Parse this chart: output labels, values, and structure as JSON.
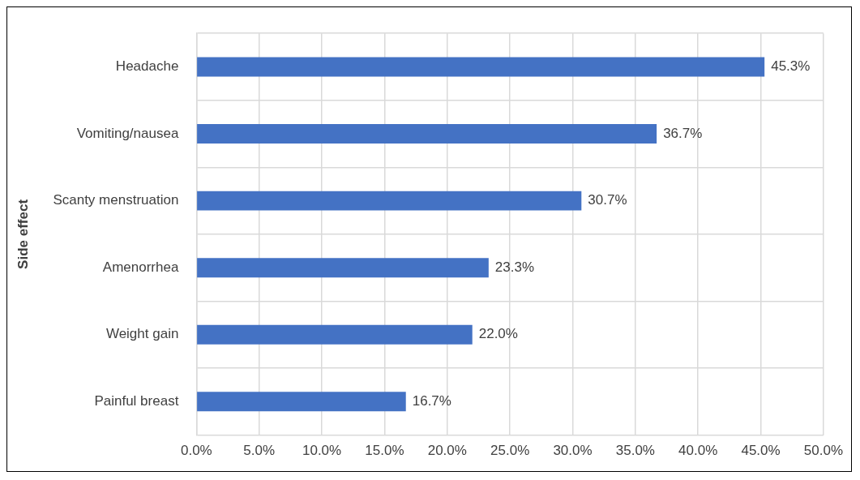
{
  "chart_data": {
    "type": "bar",
    "orientation": "horizontal",
    "ylabel": "Side effect",
    "categories": [
      "Headache",
      "Vomiting/nausea",
      "Scanty menstruation",
      "Amenorrhea",
      "Weight gain",
      "Painful breast"
    ],
    "values": [
      45.3,
      36.7,
      30.7,
      23.3,
      22.0,
      16.7
    ],
    "value_labels": [
      "45.3%",
      "36.7%",
      "30.7%",
      "23.3%",
      "22.0%",
      "16.7%"
    ],
    "color": "#4472c4",
    "xlim": [
      0,
      50
    ],
    "xticks": [
      {
        "value": 0,
        "label": "0.0%"
      },
      {
        "value": 5,
        "label": "5.0%"
      },
      {
        "value": 10,
        "label": "10.0%"
      },
      {
        "value": 15,
        "label": "15.0%"
      },
      {
        "value": 20,
        "label": "20.0%"
      },
      {
        "value": 25,
        "label": "25.0%"
      },
      {
        "value": 30,
        "label": "30.0%"
      },
      {
        "value": 35,
        "label": "35.0%"
      },
      {
        "value": 40,
        "label": "40.0%"
      },
      {
        "value": 45,
        "label": "45.0%"
      },
      {
        "value": 50,
        "label": "50.0%"
      }
    ],
    "grid": true
  }
}
